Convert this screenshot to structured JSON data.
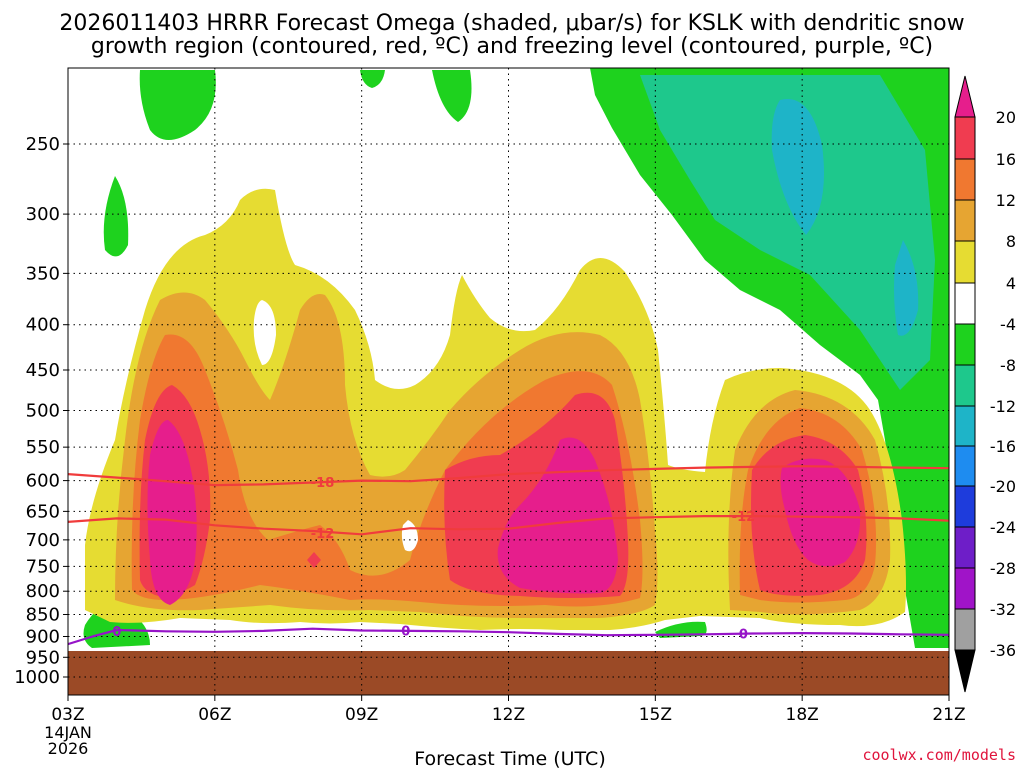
{
  "chart_data": {
    "type": "heatmap",
    "title_line1": "2026011403 HRRR Forecast Omega (shaded, μbar/s) for KSLK with dendritic snow",
    "title_line2": "growth region (contoured, red, ºC) and freezing level (contoured, purple, ºC)",
    "xlabel": "Forecast Time (UTC)",
    "credit": "coolwx.com/models",
    "x_range_hours": [
      3,
      21
    ],
    "y_range_hpa": [
      1000,
      200
    ],
    "x_ticks": [
      {
        "hour": 3,
        "label": "03Z"
      },
      {
        "hour": 6,
        "label": "06Z"
      },
      {
        "hour": 9,
        "label": "09Z"
      },
      {
        "hour": 12,
        "label": "12Z"
      },
      {
        "hour": 15,
        "label": "15Z"
      },
      {
        "hour": 18,
        "label": "18Z"
      },
      {
        "hour": 21,
        "label": "21Z"
      }
    ],
    "x_date_line1": "14JAN",
    "x_date_line2": "2026",
    "y_ticks": [
      250,
      300,
      350,
      400,
      450,
      500,
      550,
      600,
      650,
      700,
      750,
      800,
      850,
      900,
      950,
      1000
    ],
    "colorbar": {
      "labels": [
        "20",
        "16",
        "12",
        "8",
        "4",
        "-4",
        "-8",
        "-12",
        "-16",
        "-20",
        "-24",
        "-28",
        "-32",
        "-36"
      ],
      "bins": [
        {
          "from": 16,
          "to": 20,
          "color": "#f03c50"
        },
        {
          "from": 12,
          "to": 16,
          "color": "#f07830"
        },
        {
          "from": 8,
          "to": 12,
          "color": "#e6a532"
        },
        {
          "from": 4,
          "to": 8,
          "color": "#e6dc32"
        },
        {
          "from": -4,
          "to": 4,
          "color": "#ffffff"
        },
        {
          "from": -8,
          "to": -4,
          "color": "#1ed21e"
        },
        {
          "from": -12,
          "to": -8,
          "color": "#1ec88c"
        },
        {
          "from": -16,
          "to": -12,
          "color": "#1eb4c8"
        },
        {
          "from": -20,
          "to": -16,
          "color": "#1e8cf0"
        },
        {
          "from": -24,
          "to": -20,
          "color": "#1e3cdc"
        },
        {
          "from": -28,
          "to": -24,
          "color": "#6e1ec8"
        },
        {
          "from": -32,
          "to": -28,
          "color": "#a014c8"
        },
        {
          "from": -36,
          "to": -32,
          "color": "#a0a0a0"
        }
      ],
      "over_color": "#e61e8c",
      "under_color": "#000000"
    },
    "ground_color": "#9b4a26",
    "contours": [
      {
        "name": "dgz-minus18",
        "label": "-18",
        "color": "#f03c3c",
        "points": [
          [
            3.0,
            590
          ],
          [
            4.5,
            598
          ],
          [
            6.0,
            607
          ],
          [
            7.0,
            606
          ],
          [
            8.0,
            603
          ],
          [
            9.0,
            600
          ],
          [
            10.0,
            601
          ],
          [
            11.0,
            596
          ],
          [
            12.0,
            590
          ],
          [
            13.0,
            587
          ],
          [
            14.0,
            584
          ],
          [
            15.0,
            582
          ],
          [
            16.0,
            580
          ],
          [
            17.0,
            579
          ],
          [
            18.0,
            578
          ],
          [
            19.0,
            579
          ],
          [
            20.0,
            580
          ],
          [
            21.0,
            581
          ]
        ]
      },
      {
        "name": "dgz-minus12",
        "label": "-12",
        "color": "#f03c3c",
        "points": [
          [
            3.0,
            668
          ],
          [
            4.0,
            662
          ],
          [
            5.0,
            664
          ],
          [
            6.0,
            674
          ],
          [
            7.0,
            680
          ],
          [
            8.0,
            684
          ],
          [
            9.0,
            690
          ],
          [
            10.0,
            679
          ],
          [
            11.0,
            681
          ],
          [
            12.0,
            680
          ],
          [
            13.0,
            670
          ],
          [
            14.0,
            662
          ],
          [
            15.0,
            660
          ],
          [
            16.0,
            658
          ],
          [
            17.0,
            658
          ],
          [
            18.0,
            659
          ],
          [
            19.0,
            660
          ],
          [
            20.0,
            662
          ],
          [
            21.0,
            666
          ]
        ]
      },
      {
        "name": "freezing-level",
        "label": "0",
        "color": "#9614c8",
        "points": [
          [
            3.0,
            918
          ],
          [
            3.5,
            900
          ],
          [
            4.0,
            885
          ],
          [
            5.0,
            888
          ],
          [
            6.0,
            889
          ],
          [
            7.0,
            887
          ],
          [
            8.0,
            882
          ],
          [
            9.0,
            886
          ],
          [
            10.0,
            887
          ],
          [
            11.0,
            888
          ],
          [
            12.0,
            890
          ],
          [
            13.0,
            894
          ],
          [
            14.0,
            897
          ],
          [
            15.0,
            896
          ],
          [
            16.0,
            895
          ],
          [
            17.0,
            893
          ],
          [
            18.0,
            892
          ],
          [
            19.0,
            893
          ],
          [
            20.0,
            895
          ],
          [
            21.0,
            896
          ]
        ]
      }
    ],
    "contour_labels": [
      {
        "text": "-18",
        "hour": 8.2,
        "hpa": 602
      },
      {
        "text": "-12",
        "hour": 8.2,
        "hpa": 688
      },
      {
        "text": "-12",
        "hour": 16.8,
        "hpa": 658
      },
      {
        "text": "0",
        "hour": 4.0,
        "hpa": 887
      },
      {
        "text": "0",
        "hour": 9.9,
        "hpa": 886
      },
      {
        "text": "0",
        "hour": 16.8,
        "hpa": 893
      }
    ]
  }
}
